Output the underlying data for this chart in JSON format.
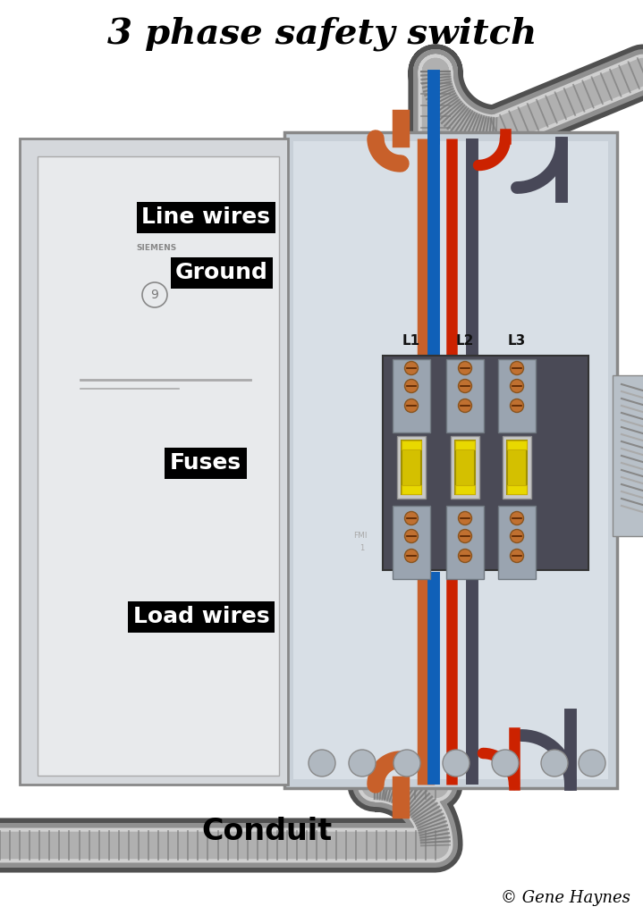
{
  "title": "3 phase safety switch",
  "copyright": "© Gene Haynes",
  "labels": {
    "line_wires": "Line wires",
    "ground": "Ground",
    "fuses": "Fuses",
    "load_wires": "Load wires",
    "conduit": "Conduit",
    "L1": "L1",
    "L2": "L2",
    "L3": "L3"
  },
  "colors": {
    "bg": "#ffffff",
    "enclosure_face": "#c8d0d8",
    "enclosure_inner": "#d8dfe6",
    "door_face": "#d5d8dc",
    "door_inner": "#e8eaec",
    "wire_orange": "#c8602a",
    "wire_blue": "#1060b8",
    "wire_red": "#cc2200",
    "wire_gray": "#484858",
    "conduit_outer": "#686868",
    "conduit_mid": "#a8a8a8",
    "conduit_light": "#d0d0d0",
    "conduit_inner": "#b0b0b0",
    "fuse_yellow": "#d4c000",
    "fuse_bright": "#e8d800",
    "terminal_copper": "#c07030",
    "metal_light": "#9aa4b0",
    "switch_dark": "#484858",
    "label_bg": "#000000",
    "label_fg": "#ffffff",
    "title_color": "#000000"
  }
}
